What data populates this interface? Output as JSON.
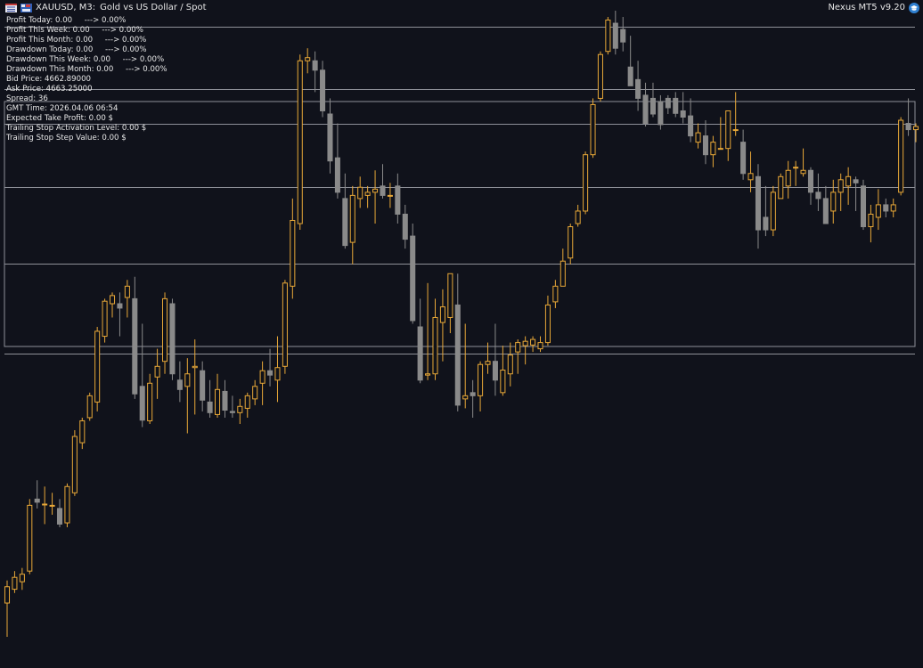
{
  "header": {
    "symbol_label": "XAUUSD, M3:",
    "description": "Gold vs US Dollar / Spot",
    "ea_name": "Nexus MT5 v9.20"
  },
  "icons": [
    "list-icon",
    "floppy-icon",
    "ea-hat-icon"
  ],
  "info_panel": [
    "Profit Today: 0.00     ---> 0.00%",
    "Profit This Week: 0.00     ---> 0.00%",
    "Profit This Month: 0.00     ---> 0.00%",
    "Drawdown Today: 0.00     ---> 0.00%",
    "Drawdown This Week: 0.00     ---> 0.00%",
    "Drawdown This Month: 0.00     ---> 0.00%",
    "Bid Price: 4662.89000",
    "Ask Price: 4663.25000",
    "Spread: 36",
    "GMT Time: 2026.04.06 06:54",
    "Expected Take Profit: 0.00 $",
    "Trailing Stop Activation Level: 0.00 $",
    "Trailing Stop Step Value: 0.00 $"
  ],
  "colors": {
    "background": "#10121b",
    "bull": "#e8a838",
    "bear": "#8a8a8a",
    "level_line": "#8e9098",
    "text": "#e6e6e6"
  },
  "chart_data": {
    "type": "candlestick",
    "title": "",
    "xlabel": "",
    "ylabel": "",
    "ylim": [
      0,
      1000
    ],
    "candles": [
      {
        "o": 54,
        "h": 90,
        "l": 0,
        "c": 80
      },
      {
        "o": 76,
        "h": 105,
        "l": 70,
        "c": 95
      },
      {
        "o": 88,
        "h": 110,
        "l": 75,
        "c": 100
      },
      {
        "o": 105,
        "h": 220,
        "l": 100,
        "c": 210
      },
      {
        "o": 220,
        "h": 250,
        "l": 205,
        "c": 215
      },
      {
        "o": 212,
        "h": 240,
        "l": 180,
        "c": 212
      },
      {
        "o": 210,
        "h": 230,
        "l": 195,
        "c": 210
      },
      {
        "o": 205,
        "h": 220,
        "l": 175,
        "c": 180
      },
      {
        "o": 182,
        "h": 245,
        "l": 175,
        "c": 240
      },
      {
        "o": 230,
        "h": 330,
        "l": 225,
        "c": 320
      },
      {
        "o": 310,
        "h": 350,
        "l": 300,
        "c": 345
      },
      {
        "o": 350,
        "h": 390,
        "l": 345,
        "c": 385
      },
      {
        "o": 375,
        "h": 495,
        "l": 360,
        "c": 488
      },
      {
        "o": 480,
        "h": 540,
        "l": 470,
        "c": 536
      },
      {
        "o": 532,
        "h": 550,
        "l": 510,
        "c": 545
      },
      {
        "o": 532,
        "h": 550,
        "l": 480,
        "c": 525
      },
      {
        "o": 542,
        "h": 570,
        "l": 510,
        "c": 560
      },
      {
        "o": 540,
        "h": 575,
        "l": 380,
        "c": 388
      },
      {
        "o": 400,
        "h": 500,
        "l": 335,
        "c": 346
      },
      {
        "o": 345,
        "h": 420,
        "l": 340,
        "c": 405
      },
      {
        "o": 415,
        "h": 460,
        "l": 380,
        "c": 432
      },
      {
        "o": 440,
        "h": 550,
        "l": 420,
        "c": 540
      },
      {
        "o": 532,
        "h": 540,
        "l": 410,
        "c": 420
      },
      {
        "o": 410,
        "h": 440,
        "l": 375,
        "c": 395
      },
      {
        "o": 400,
        "h": 445,
        "l": 325,
        "c": 420
      },
      {
        "o": 430,
        "h": 475,
        "l": 355,
        "c": 432
      },
      {
        "o": 425,
        "h": 440,
        "l": 360,
        "c": 378
      },
      {
        "o": 375,
        "h": 410,
        "l": 350,
        "c": 358
      },
      {
        "o": 355,
        "h": 420,
        "l": 350,
        "c": 395
      },
      {
        "o": 392,
        "h": 410,
        "l": 350,
        "c": 362
      },
      {
        "o": 360,
        "h": 385,
        "l": 350,
        "c": 358
      },
      {
        "o": 358,
        "h": 380,
        "l": 340,
        "c": 368
      },
      {
        "o": 365,
        "h": 390,
        "l": 350,
        "c": 385
      },
      {
        "o": 380,
        "h": 410,
        "l": 370,
        "c": 400
      },
      {
        "o": 405,
        "h": 440,
        "l": 370,
        "c": 425
      },
      {
        "o": 425,
        "h": 460,
        "l": 400,
        "c": 418
      },
      {
        "o": 410,
        "h": 480,
        "l": 375,
        "c": 430
      },
      {
        "o": 432,
        "h": 570,
        "l": 420,
        "c": 565
      },
      {
        "o": 560,
        "h": 700,
        "l": 540,
        "c": 665
      },
      {
        "o": 660,
        "h": 930,
        "l": 650,
        "c": 920
      },
      {
        "o": 920,
        "h": 940,
        "l": 900,
        "c": 925
      },
      {
        "o": 920,
        "h": 935,
        "l": 870,
        "c": 905
      },
      {
        "o": 905,
        "h": 920,
        "l": 830,
        "c": 840
      },
      {
        "o": 835,
        "h": 860,
        "l": 740,
        "c": 760
      },
      {
        "o": 765,
        "h": 820,
        "l": 700,
        "c": 710
      },
      {
        "o": 700,
        "h": 740,
        "l": 620,
        "c": 625
      },
      {
        "o": 630,
        "h": 720,
        "l": 595,
        "c": 705
      },
      {
        "o": 700,
        "h": 735,
        "l": 685,
        "c": 718
      },
      {
        "o": 705,
        "h": 720,
        "l": 685,
        "c": 710
      },
      {
        "o": 710,
        "h": 745,
        "l": 660,
        "c": 715
      },
      {
        "o": 720,
        "h": 755,
        "l": 700,
        "c": 705
      },
      {
        "o": 705,
        "h": 725,
        "l": 685,
        "c": 705
      },
      {
        "o": 720,
        "h": 740,
        "l": 660,
        "c": 675
      },
      {
        "o": 675,
        "h": 690,
        "l": 620,
        "c": 635
      },
      {
        "o": 640,
        "h": 660,
        "l": 500,
        "c": 505
      },
      {
        "o": 495,
        "h": 540,
        "l": 405,
        "c": 410
      },
      {
        "o": 418,
        "h": 565,
        "l": 410,
        "c": 420
      },
      {
        "o": 420,
        "h": 540,
        "l": 410,
        "c": 510
      },
      {
        "o": 502,
        "h": 555,
        "l": 440,
        "c": 527
      },
      {
        "o": 510,
        "h": 575,
        "l": 485,
        "c": 580
      },
      {
        "o": 530,
        "h": 580,
        "l": 360,
        "c": 370
      },
      {
        "o": 380,
        "h": 500,
        "l": 365,
        "c": 385
      },
      {
        "o": 390,
        "h": 410,
        "l": 350,
        "c": 385
      },
      {
        "o": 385,
        "h": 440,
        "l": 360,
        "c": 435
      },
      {
        "o": 435,
        "h": 470,
        "l": 420,
        "c": 440
      },
      {
        "o": 440,
        "h": 500,
        "l": 385,
        "c": 410
      },
      {
        "o": 390,
        "h": 465,
        "l": 385,
        "c": 426
      },
      {
        "o": 420,
        "h": 470,
        "l": 400,
        "c": 450
      },
      {
        "o": 455,
        "h": 475,
        "l": 420,
        "c": 470
      },
      {
        "o": 465,
        "h": 480,
        "l": 435,
        "c": 472
      },
      {
        "o": 466,
        "h": 480,
        "l": 455,
        "c": 475
      },
      {
        "o": 460,
        "h": 480,
        "l": 455,
        "c": 470
      },
      {
        "o": 470,
        "h": 545,
        "l": 465,
        "c": 530
      },
      {
        "o": 535,
        "h": 570,
        "l": 525,
        "c": 560
      },
      {
        "o": 560,
        "h": 620,
        "l": 560,
        "c": 600
      },
      {
        "o": 605,
        "h": 660,
        "l": 595,
        "c": 655
      },
      {
        "o": 660,
        "h": 690,
        "l": 655,
        "c": 680
      },
      {
        "o": 680,
        "h": 775,
        "l": 675,
        "c": 770
      },
      {
        "o": 770,
        "h": 860,
        "l": 765,
        "c": 850
      },
      {
        "o": 860,
        "h": 935,
        "l": 855,
        "c": 930
      },
      {
        "o": 935,
        "h": 990,
        "l": 930,
        "c": 985
      },
      {
        "o": 980,
        "h": 1000,
        "l": 930,
        "c": 940
      },
      {
        "o": 970,
        "h": 990,
        "l": 935,
        "c": 950
      },
      {
        "o": 910,
        "h": 960,
        "l": 880,
        "c": 880
      },
      {
        "o": 890,
        "h": 920,
        "l": 840,
        "c": 860
      },
      {
        "o": 865,
        "h": 885,
        "l": 815,
        "c": 820
      },
      {
        "o": 860,
        "h": 885,
        "l": 830,
        "c": 835
      },
      {
        "o": 855,
        "h": 865,
        "l": 810,
        "c": 818
      },
      {
        "o": 860,
        "h": 865,
        "l": 835,
        "c": 845
      },
      {
        "o": 860,
        "h": 870,
        "l": 830,
        "c": 836
      },
      {
        "o": 840,
        "h": 870,
        "l": 820,
        "c": 830
      },
      {
        "o": 832,
        "h": 860,
        "l": 790,
        "c": 800
      },
      {
        "o": 790,
        "h": 820,
        "l": 780,
        "c": 805
      },
      {
        "o": 800,
        "h": 825,
        "l": 755,
        "c": 770
      },
      {
        "o": 770,
        "h": 800,
        "l": 750,
        "c": 790
      },
      {
        "o": 780,
        "h": 830,
        "l": 780,
        "c": 780
      },
      {
        "o": 780,
        "h": 840,
        "l": 760,
        "c": 840
      },
      {
        "o": 810,
        "h": 870,
        "l": 800,
        "c": 810
      },
      {
        "o": 790,
        "h": 810,
        "l": 730,
        "c": 740
      },
      {
        "o": 730,
        "h": 775,
        "l": 710,
        "c": 740
      },
      {
        "o": 735,
        "h": 755,
        "l": 620,
        "c": 650
      },
      {
        "o": 670,
        "h": 720,
        "l": 640,
        "c": 650
      },
      {
        "o": 650,
        "h": 720,
        "l": 640,
        "c": 710
      },
      {
        "o": 700,
        "h": 740,
        "l": 700,
        "c": 735
      },
      {
        "o": 720,
        "h": 760,
        "l": 700,
        "c": 745
      },
      {
        "o": 750,
        "h": 760,
        "l": 720,
        "c": 750
      },
      {
        "o": 740,
        "h": 780,
        "l": 735,
        "c": 745
      },
      {
        "o": 745,
        "h": 750,
        "l": 690,
        "c": 710
      },
      {
        "o": 710,
        "h": 740,
        "l": 680,
        "c": 700
      },
      {
        "o": 700,
        "h": 720,
        "l": 660,
        "c": 660
      },
      {
        "o": 680,
        "h": 730,
        "l": 660,
        "c": 710
      },
      {
        "o": 710,
        "h": 740,
        "l": 680,
        "c": 730
      },
      {
        "o": 720,
        "h": 750,
        "l": 690,
        "c": 735
      },
      {
        "o": 730,
        "h": 735,
        "l": 680,
        "c": 725
      },
      {
        "o": 720,
        "h": 730,
        "l": 650,
        "c": 655
      },
      {
        "o": 655,
        "h": 690,
        "l": 630,
        "c": 675
      },
      {
        "o": 670,
        "h": 715,
        "l": 650,
        "c": 690
      },
      {
        "o": 690,
        "h": 700,
        "l": 670,
        "c": 680
      },
      {
        "o": 680,
        "h": 700,
        "l": 670,
        "c": 690
      },
      {
        "o": 710,
        "h": 830,
        "l": 705,
        "c": 825
      },
      {
        "o": 820,
        "h": 860,
        "l": 800,
        "c": 810
      },
      {
        "o": 810,
        "h": 820,
        "l": 790,
        "c": 815
      }
    ],
    "levels": [
      975,
      875,
      819,
      719,
      596,
      453
    ]
  }
}
